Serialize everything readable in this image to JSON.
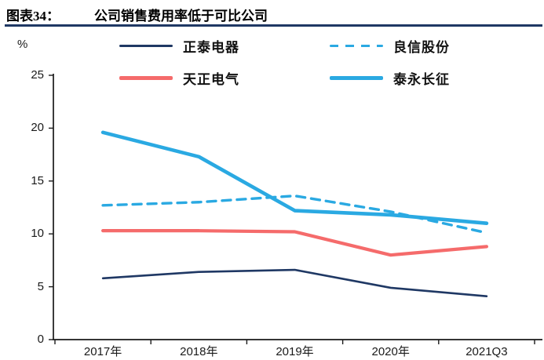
{
  "figure": {
    "label": "图表34：",
    "title": "公司销售费用率低于可比公司"
  },
  "chart_data": {
    "type": "line",
    "title": "公司销售费用率低于可比公司",
    "unit_label": "%",
    "categories": [
      "2017年",
      "2018年",
      "2019年",
      "2020年",
      "2021Q3"
    ],
    "series": [
      {
        "name": "正泰电器",
        "color": "#1f3864",
        "dash": "solid",
        "width": 2.6,
        "values": [
          5.8,
          6.4,
          6.6,
          4.9,
          4.1
        ]
      },
      {
        "name": "良信股份",
        "color": "#2aa9e2",
        "dash": "dashed",
        "width": 3.4,
        "values": [
          12.7,
          13.0,
          13.6,
          12.1,
          10.1
        ]
      },
      {
        "name": "天正电气",
        "color": "#f56b6b",
        "dash": "solid",
        "width": 4.2,
        "values": [
          10.3,
          10.3,
          10.2,
          8.0,
          8.8
        ]
      },
      {
        "name": "泰永长征",
        "color": "#2aa9e2",
        "dash": "solid",
        "width": 4.6,
        "values": [
          19.6,
          17.3,
          12.2,
          11.8,
          11.0
        ]
      }
    ],
    "ylim": [
      0,
      25
    ],
    "yticks": [
      0,
      5,
      10,
      15,
      20,
      25
    ],
    "grid": false,
    "legend_position": "top"
  },
  "colors": {
    "accent_rule": "#1f3864",
    "axis": "#1a1a1a",
    "background": "#ffffff"
  }
}
